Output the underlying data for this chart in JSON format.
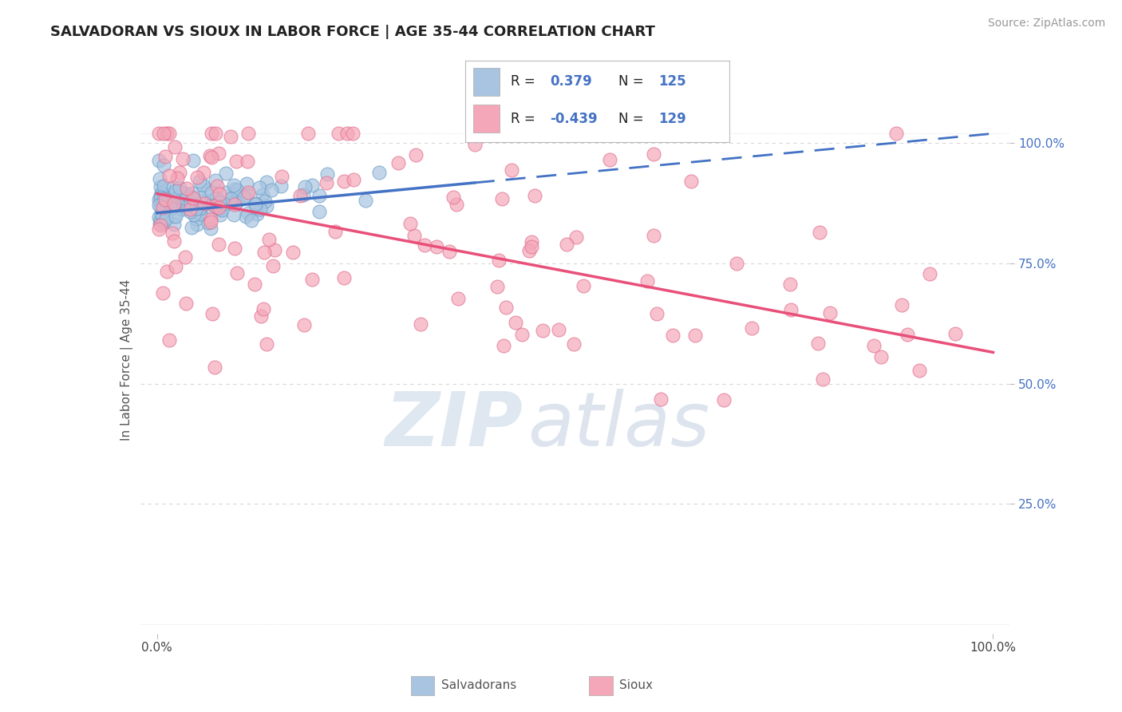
{
  "title": "SALVADORAN VS SIOUX IN LABOR FORCE | AGE 35-44 CORRELATION CHART",
  "source_text": "Source: ZipAtlas.com",
  "ylabel": "In Labor Force | Age 35-44",
  "xlim": [
    -0.02,
    1.02
  ],
  "ylim": [
    -0.02,
    1.12
  ],
  "ytick_values": [
    0.25,
    0.5,
    0.75,
    1.0
  ],
  "ytick_labels": [
    "25.0%",
    "50.0%",
    "75.0%",
    "100.0%"
  ],
  "xtick_values": [
    0.0,
    1.0
  ],
  "xtick_labels": [
    "0.0%",
    "100.0%"
  ],
  "salvadoran_color": "#a8c4e0",
  "salvadoran_edge": "#6a9fc8",
  "sioux_color": "#f4a7b9",
  "sioux_edge": "#e07090",
  "trend_blue_color": "#4472c4",
  "trend_pink_color": "#e8507a",
  "watermark_zip": "ZIP",
  "watermark_atlas": "atlas",
  "watermark_color_zip": "#c8d8ea",
  "watermark_color_atlas": "#b8c8e0",
  "R_salvadoran": 0.379,
  "N_salvadoran": 125,
  "R_sioux": -0.439,
  "N_sioux": 129,
  "background_color": "#ffffff",
  "grid_color": "#d8d8d8",
  "title_fontsize": 13,
  "axis_label_fontsize": 11,
  "tick_fontsize": 11,
  "legend_fontsize": 13,
  "source_fontsize": 10,
  "sal_trend_x_solid_end": 0.38,
  "sal_trend_y_start": 0.855,
  "sal_trend_y_solid_end": 0.875,
  "sal_trend_y_dash_end": 1.02,
  "sioux_trend_y_start": 0.895,
  "sioux_trend_y_end": 0.565
}
